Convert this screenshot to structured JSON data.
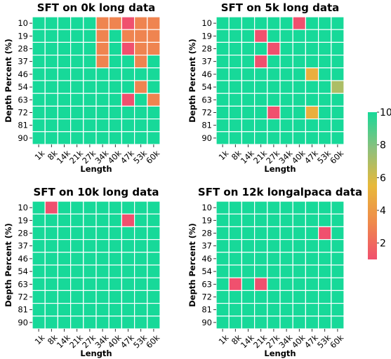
{
  "chart_data": [
    {
      "type": "heatmap",
      "title": "SFT on 0k long data",
      "xlabel": "Length",
      "ylabel": "Depth Percent (%)",
      "x_ticks": [
        "1k",
        "8k",
        "14k",
        "21k",
        "27k",
        "34k",
        "40k",
        "47k",
        "53k",
        "60k"
      ],
      "y_ticks": [
        "10",
        "19",
        "28",
        "37",
        "46",
        "54",
        "63",
        "72",
        "81",
        "90"
      ],
      "values": [
        [
          10,
          10,
          10,
          10,
          10,
          3,
          3,
          1,
          3,
          3
        ],
        [
          10,
          10,
          10,
          10,
          10,
          3,
          10,
          3,
          3,
          3
        ],
        [
          10,
          10,
          10,
          10,
          10,
          3,
          10,
          1,
          3,
          3
        ],
        [
          10,
          10,
          10,
          10,
          10,
          3,
          10,
          10,
          3,
          10
        ],
        [
          10,
          10,
          10,
          10,
          10,
          10,
          10,
          10,
          10,
          10
        ],
        [
          10,
          10,
          10,
          10,
          10,
          10,
          10,
          10,
          3,
          10
        ],
        [
          10,
          10,
          10,
          10,
          10,
          10,
          10,
          1,
          10,
          3
        ],
        [
          10,
          10,
          10,
          10,
          10,
          10,
          10,
          10,
          10,
          10
        ],
        [
          10,
          10,
          10,
          10,
          10,
          10,
          10,
          10,
          10,
          10
        ],
        [
          10,
          10,
          10,
          10,
          10,
          10,
          10,
          10,
          10,
          10
        ]
      ]
    },
    {
      "type": "heatmap",
      "title": "SFT on 5k long data",
      "xlabel": "Length",
      "ylabel": "Depth Percent (%)",
      "x_ticks": [
        "1k",
        "8k",
        "14k",
        "21k",
        "27k",
        "34k",
        "40k",
        "47k",
        "53k",
        "60k"
      ],
      "y_ticks": [
        "10",
        "19",
        "28",
        "37",
        "46",
        "54",
        "63",
        "72",
        "81",
        "90"
      ],
      "values": [
        [
          10,
          10,
          10,
          10,
          10,
          10,
          1,
          10,
          10,
          10
        ],
        [
          10,
          10,
          10,
          1,
          10,
          10,
          10,
          10,
          10,
          10
        ],
        [
          10,
          10,
          10,
          10,
          1,
          10,
          10,
          10,
          10,
          10
        ],
        [
          10,
          10,
          10,
          1,
          10,
          10,
          10,
          10,
          10,
          10
        ],
        [
          10,
          10,
          10,
          10,
          10,
          10,
          10,
          5,
          10,
          10
        ],
        [
          10,
          10,
          10,
          10,
          10,
          10,
          10,
          10,
          10,
          7
        ],
        [
          10,
          10,
          10,
          10,
          10,
          10,
          10,
          10,
          10,
          10
        ],
        [
          10,
          10,
          10,
          10,
          1,
          10,
          10,
          5,
          10,
          10
        ],
        [
          10,
          10,
          10,
          10,
          10,
          10,
          10,
          10,
          10,
          10
        ],
        [
          10,
          10,
          10,
          10,
          10,
          10,
          10,
          10,
          10,
          10
        ]
      ]
    },
    {
      "type": "heatmap",
      "title": "SFT on 10k long data",
      "xlabel": "Length",
      "ylabel": "Depth Percent (%)",
      "x_ticks": [
        "1k",
        "8k",
        "14k",
        "21k",
        "27k",
        "34k",
        "40k",
        "47k",
        "53k",
        "60k"
      ],
      "y_ticks": [
        "10",
        "19",
        "28",
        "37",
        "46",
        "54",
        "63",
        "72",
        "81",
        "90"
      ],
      "values": [
        [
          10,
          1,
          10,
          10,
          10,
          10,
          10,
          10,
          10,
          10
        ],
        [
          10,
          10,
          10,
          10,
          10,
          10,
          10,
          1,
          10,
          10
        ],
        [
          10,
          10,
          10,
          10,
          10,
          10,
          10,
          10,
          10,
          10
        ],
        [
          10,
          10,
          10,
          10,
          10,
          10,
          10,
          10,
          10,
          10
        ],
        [
          10,
          10,
          10,
          10,
          10,
          10,
          10,
          10,
          10,
          10
        ],
        [
          10,
          10,
          10,
          10,
          10,
          10,
          10,
          10,
          10,
          10
        ],
        [
          10,
          10,
          10,
          10,
          10,
          10,
          10,
          10,
          10,
          10
        ],
        [
          10,
          10,
          10,
          10,
          10,
          10,
          10,
          10,
          10,
          10
        ],
        [
          10,
          10,
          10,
          10,
          10,
          10,
          10,
          10,
          10,
          10
        ],
        [
          10,
          10,
          10,
          10,
          10,
          10,
          10,
          10,
          10,
          10
        ]
      ]
    },
    {
      "type": "heatmap",
      "title": "SFT on 12k longalpaca data",
      "xlabel": "Length",
      "ylabel": "Depth Percent (%)",
      "x_ticks": [
        "1k",
        "8k",
        "14k",
        "21k",
        "27k",
        "34k",
        "40k",
        "47k",
        "53k",
        "60k"
      ],
      "y_ticks": [
        "10",
        "19",
        "28",
        "37",
        "46",
        "54",
        "63",
        "72",
        "81",
        "90"
      ],
      "values": [
        [
          10,
          10,
          10,
          10,
          10,
          10,
          10,
          10,
          10,
          10
        ],
        [
          10,
          10,
          10,
          10,
          10,
          10,
          10,
          10,
          10,
          10
        ],
        [
          10,
          10,
          10,
          10,
          10,
          10,
          10,
          10,
          1,
          10
        ],
        [
          10,
          10,
          10,
          10,
          10,
          10,
          10,
          10,
          10,
          10
        ],
        [
          10,
          10,
          10,
          10,
          10,
          10,
          10,
          10,
          10,
          10
        ],
        [
          10,
          10,
          10,
          10,
          10,
          10,
          10,
          10,
          10,
          10
        ],
        [
          10,
          1,
          10,
          1,
          10,
          10,
          10,
          10,
          10,
          10
        ],
        [
          10,
          10,
          10,
          10,
          10,
          10,
          10,
          10,
          10,
          10
        ],
        [
          10,
          10,
          10,
          10,
          10,
          10,
          10,
          10,
          10,
          10
        ],
        [
          10,
          10,
          10,
          10,
          10,
          10,
          10,
          10,
          10,
          10
        ]
      ]
    }
  ],
  "colorbar": {
    "range": [
      1,
      10
    ],
    "ticks": [
      "10",
      "8",
      "6",
      "4",
      "2"
    ],
    "tick_values": [
      10,
      8,
      6,
      4,
      2
    ],
    "colors": [
      "#f0506e",
      "#ef8a4c",
      "#e8b93a",
      "#8ec07c",
      "#17d999"
    ]
  }
}
